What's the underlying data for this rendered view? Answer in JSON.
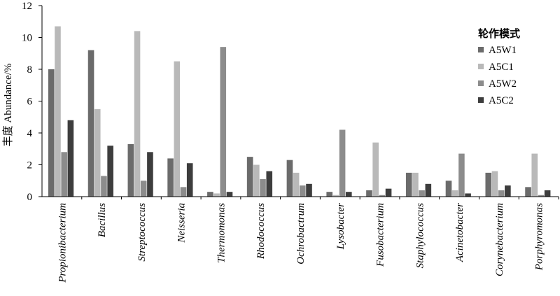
{
  "chart_data": {
    "type": "bar",
    "ylabel": "丰度 Abundance/%",
    "ylim": [
      0,
      12
    ],
    "yticks": [
      0,
      2,
      4,
      6,
      8,
      10,
      12
    ],
    "categories": [
      "Propionibacterium",
      "Bacillus",
      "Streptococcus",
      "Neisseria",
      "Thermomonas",
      "Rhodococcus",
      "Ochrobactrum",
      "Lysobacter",
      "Fusobacterium",
      "Staphylococcus",
      "Acinetobacter",
      "Corynebacterium",
      "Porphyromonas"
    ],
    "legend_title": "轮作模式",
    "legend_position": "right",
    "grid": false,
    "series": [
      {
        "name": "A5W1",
        "color": "#6b6b6b",
        "values": [
          8.0,
          9.2,
          3.3,
          2.4,
          0.3,
          2.5,
          2.3,
          0.3,
          0.4,
          1.5,
          1.0,
          1.5,
          0.6
        ]
      },
      {
        "name": "A5C1",
        "color": "#b9b9b9",
        "values": [
          10.7,
          5.5,
          10.4,
          8.5,
          0.2,
          2.0,
          1.5,
          0.1,
          3.4,
          1.5,
          0.4,
          1.6,
          2.7
        ]
      },
      {
        "name": "A5W2",
        "color": "#8c8c8c",
        "values": [
          2.8,
          1.3,
          1.0,
          0.6,
          9.4,
          1.1,
          0.7,
          4.2,
          0.1,
          0.4,
          2.7,
          0.4,
          0.1
        ]
      },
      {
        "name": "A5C2",
        "color": "#3d3d3d",
        "values": [
          4.8,
          3.2,
          2.8,
          2.1,
          0.3,
          1.6,
          0.8,
          0.3,
          0.5,
          0.8,
          0.2,
          0.7,
          0.4
        ]
      }
    ]
  }
}
